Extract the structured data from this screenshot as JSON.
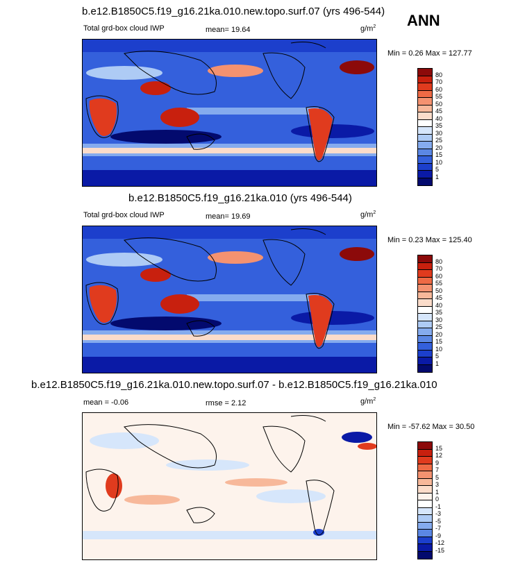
{
  "season": "ANN",
  "chart_data": [
    {
      "type": "heatmap",
      "title": "b.e12.B1850C5.f19_g16.21ka.010.new.topo.surf.07 (yrs 496-544)",
      "left_label": "Total grd-box cloud IWP",
      "stat_label": "mean=  19.64",
      "units": "g/m",
      "units_exp": "2",
      "minmax_label": "Min =   0.26 Max = 127.77",
      "min": 0.26,
      "max": 127.77,
      "mean": 19.64,
      "levels": [
        "80",
        "70",
        "60",
        "55",
        "50",
        "45",
        "40",
        "35",
        "30",
        "25",
        "20",
        "15",
        "10",
        "5",
        "1"
      ],
      "colors": [
        "#8c0a0a",
        "#c8200e",
        "#e03b1e",
        "#ee6a45",
        "#f49270",
        "#f7b89a",
        "#fbdcca",
        "#ffffff",
        "#d6e6fb",
        "#aecbf5",
        "#85abee",
        "#5b87e4",
        "#3460dc",
        "#1c3fcc",
        "#0a1aa6",
        "#030a6e"
      ]
    },
    {
      "type": "heatmap",
      "title": "b.e12.B1850C5.f19_g16.21ka.010 (yrs 496-544)",
      "left_label": "Total grd-box cloud IWP",
      "stat_label": "mean=  19.69",
      "units": "g/m",
      "units_exp": "2",
      "minmax_label": "Min =   0.23 Max = 125.40",
      "min": 0.23,
      "max": 125.4,
      "mean": 19.69,
      "levels": [
        "80",
        "70",
        "60",
        "55",
        "50",
        "45",
        "40",
        "35",
        "30",
        "25",
        "20",
        "15",
        "10",
        "5",
        "1"
      ],
      "colors": [
        "#8c0a0a",
        "#c8200e",
        "#e03b1e",
        "#ee6a45",
        "#f49270",
        "#f7b89a",
        "#fbdcca",
        "#ffffff",
        "#d6e6fb",
        "#aecbf5",
        "#85abee",
        "#5b87e4",
        "#3460dc",
        "#1c3fcc",
        "#0a1aa6",
        "#030a6e"
      ]
    },
    {
      "type": "heatmap",
      "title": "b.e12.B1850C5.f19_g16.21ka.010.new.topo.surf.07 - b.e12.B1850C5.f19_g16.21ka.010",
      "left_label": "mean =  -0.06",
      "stat_label": "rmse =   2.12",
      "units": "g/m",
      "units_exp": "2",
      "minmax_label": "Min = -57.62 Max =  30.50",
      "min": -57.62,
      "max": 30.5,
      "mean": -0.06,
      "rmse": 2.12,
      "levels": [
        "15",
        "12",
        "9",
        "7",
        "5",
        "3",
        "1",
        "0",
        "-1",
        "-3",
        "-5",
        "-7",
        "-9",
        "-12",
        "-15"
      ],
      "colors": [
        "#8c0a0a",
        "#c8200e",
        "#e03b1e",
        "#ee6a45",
        "#f49270",
        "#f7b89a",
        "#fbdcca",
        "#fdf3ec",
        "#ffffff",
        "#d6e6fb",
        "#aecbf5",
        "#85abee",
        "#5b87e4",
        "#1c3fcc",
        "#0a1aa6",
        "#030a6e"
      ]
    }
  ]
}
